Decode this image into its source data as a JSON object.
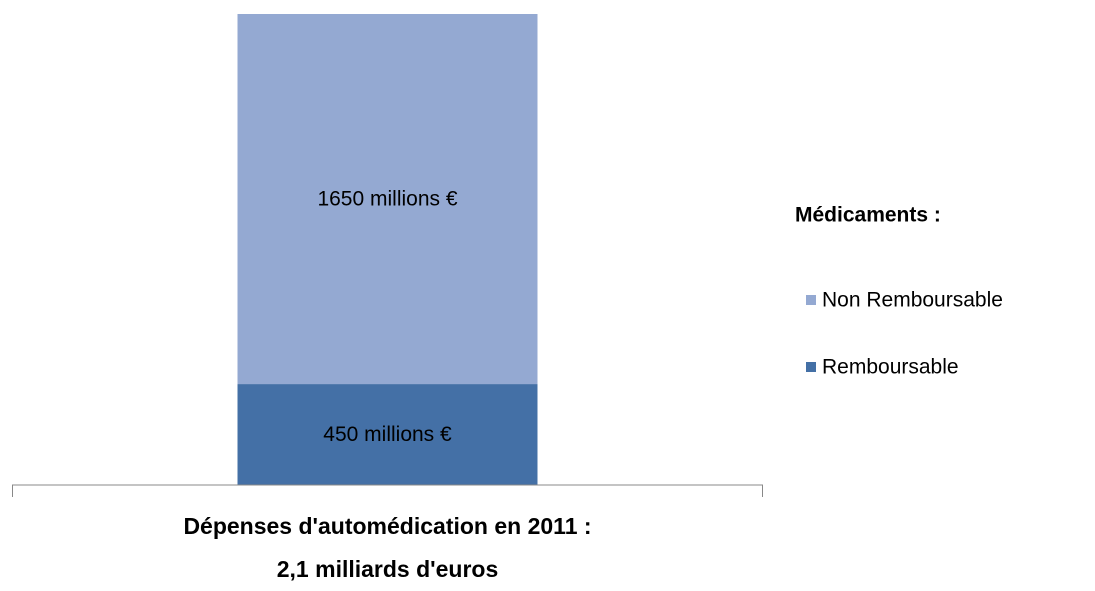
{
  "chart_data": {
    "type": "stacked_bar",
    "categories": [
      "Dépenses d'automédication en 2011 :\n2,1 milliards d'euros"
    ],
    "legend_title": "Médicaments :",
    "series": [
      {
        "name": "Remboursable",
        "color": "#4470a6",
        "values": [
          450
        ],
        "value_labels": [
          "450 millions €"
        ]
      },
      {
        "name": "Non Remboursable",
        "color": "#94a9d2",
        "values": [
          1650
        ],
        "value_labels": [
          "1650 millions €"
        ]
      }
    ],
    "ylim": [
      0,
      2100
    ],
    "legend": "right"
  }
}
